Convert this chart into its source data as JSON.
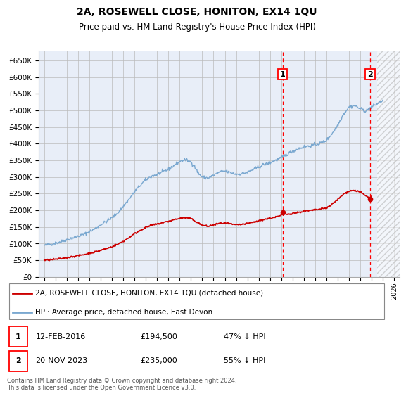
{
  "title": "2A, ROSEWELL CLOSE, HONITON, EX14 1QU",
  "subtitle": "Price paid vs. HM Land Registry's House Price Index (HPI)",
  "ylim": [
    0,
    680000
  ],
  "yticks": [
    0,
    50000,
    100000,
    150000,
    200000,
    250000,
    300000,
    350000,
    400000,
    450000,
    500000,
    550000,
    600000,
    650000
  ],
  "ytick_labels": [
    "£0",
    "£50K",
    "£100K",
    "£150K",
    "£200K",
    "£250K",
    "£300K",
    "£350K",
    "£400K",
    "£450K",
    "£500K",
    "£550K",
    "£600K",
    "£650K"
  ],
  "xlim_start": 1994.5,
  "xlim_end": 2026.5,
  "hpi_color": "#7aa8d0",
  "price_color": "#cc0000",
  "sale1_date_decimal": 2016.12,
  "sale1_price": 194500,
  "sale2_date_decimal": 2023.88,
  "sale2_price": 235000,
  "sale1_date_str": "12-FEB-2016",
  "sale1_price_str": "£194,500",
  "sale1_pct_str": "47% ↓ HPI",
  "sale2_date_str": "20-NOV-2023",
  "sale2_price_str": "£235,000",
  "sale2_pct_str": "55% ↓ HPI",
  "legend_line1": "2A, ROSEWELL CLOSE, HONITON, EX14 1QU (detached house)",
  "legend_line2": "HPI: Average price, detached house, East Devon",
  "footer": "Contains HM Land Registry data © Crown copyright and database right 2024.\nThis data is licensed under the Open Government Licence v3.0.",
  "hatch_start": 2024.5,
  "bg_color": "#e8eef8",
  "grid_color": "#bbbbbb"
}
